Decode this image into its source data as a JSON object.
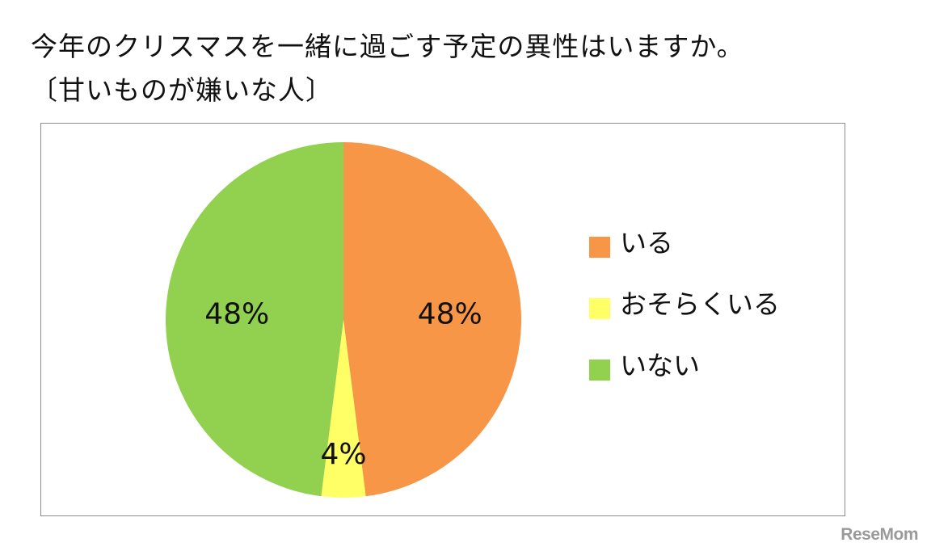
{
  "title": {
    "line1": "今年のクリスマスを一緒に過ごす予定の異性はいますか。",
    "line2": "〔甘いものが嫌いな人〕"
  },
  "chart_data": {
    "type": "pie",
    "categories": [
      "いる",
      "おそらくいる",
      "いない"
    ],
    "values": [
      48,
      4,
      48
    ],
    "value_labels": [
      "48%",
      "4%",
      "48%"
    ],
    "colors": [
      "#F79646",
      "#FFFF66",
      "#92D050"
    ],
    "start_angle_deg": 0,
    "direction": "clockwise",
    "legend_position": "right"
  },
  "legend": {
    "items": [
      {
        "label": "いる",
        "color": "#F79646"
      },
      {
        "label": "おそらくいる",
        "color": "#FFFF66"
      },
      {
        "label": "いない",
        "color": "#92D050"
      }
    ]
  },
  "watermark": "ReseMom"
}
